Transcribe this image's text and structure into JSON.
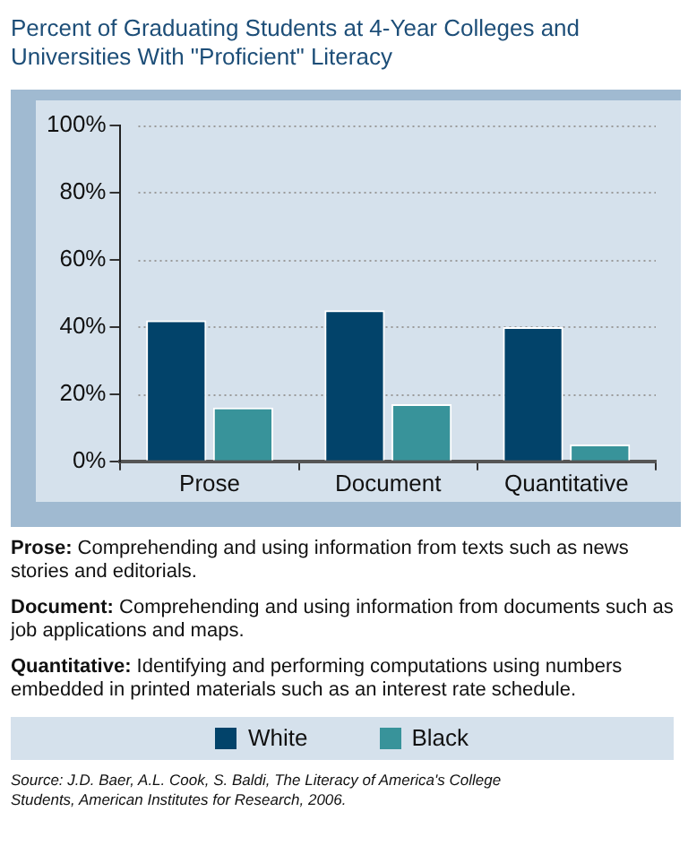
{
  "chart_data": {
    "type": "bar",
    "title": "Percent of Graduating Students at 4-Year Colleges and Universities With \"Proficient\" Literacy",
    "categories": [
      "Prose",
      "Document",
      "Quantitative"
    ],
    "series": [
      {
        "name": "White",
        "color": "#02436a",
        "values": [
          42,
          45,
          40
        ]
      },
      {
        "name": "Black",
        "color": "#38939a",
        "values": [
          16,
          17,
          5
        ]
      }
    ],
    "ylim": [
      0,
      100
    ],
    "yticks": [
      {
        "value": 0,
        "label": "0%"
      },
      {
        "value": 20,
        "label": "20%"
      },
      {
        "value": 40,
        "label": "40%"
      },
      {
        "value": 60,
        "label": "60%"
      },
      {
        "value": 80,
        "label": "80%"
      },
      {
        "value": 100,
        "label": "100%"
      }
    ],
    "grid": "y",
    "legend": "bottom",
    "annotations": [
      "Prose: Comprehending and using information from texts such as news stories and editorials.",
      "Document: Comprehending and using information from documents such as job applications and maps.",
      "Quantitative: Identifying and performing computations using numbers embedded in printed materials such as an interest rate schedule.",
      "Source: J.D. Baer, A.L. Cook, S. Baldi, The Literacy of America's College Students, American Institutes for Research, 2006."
    ]
  }
}
